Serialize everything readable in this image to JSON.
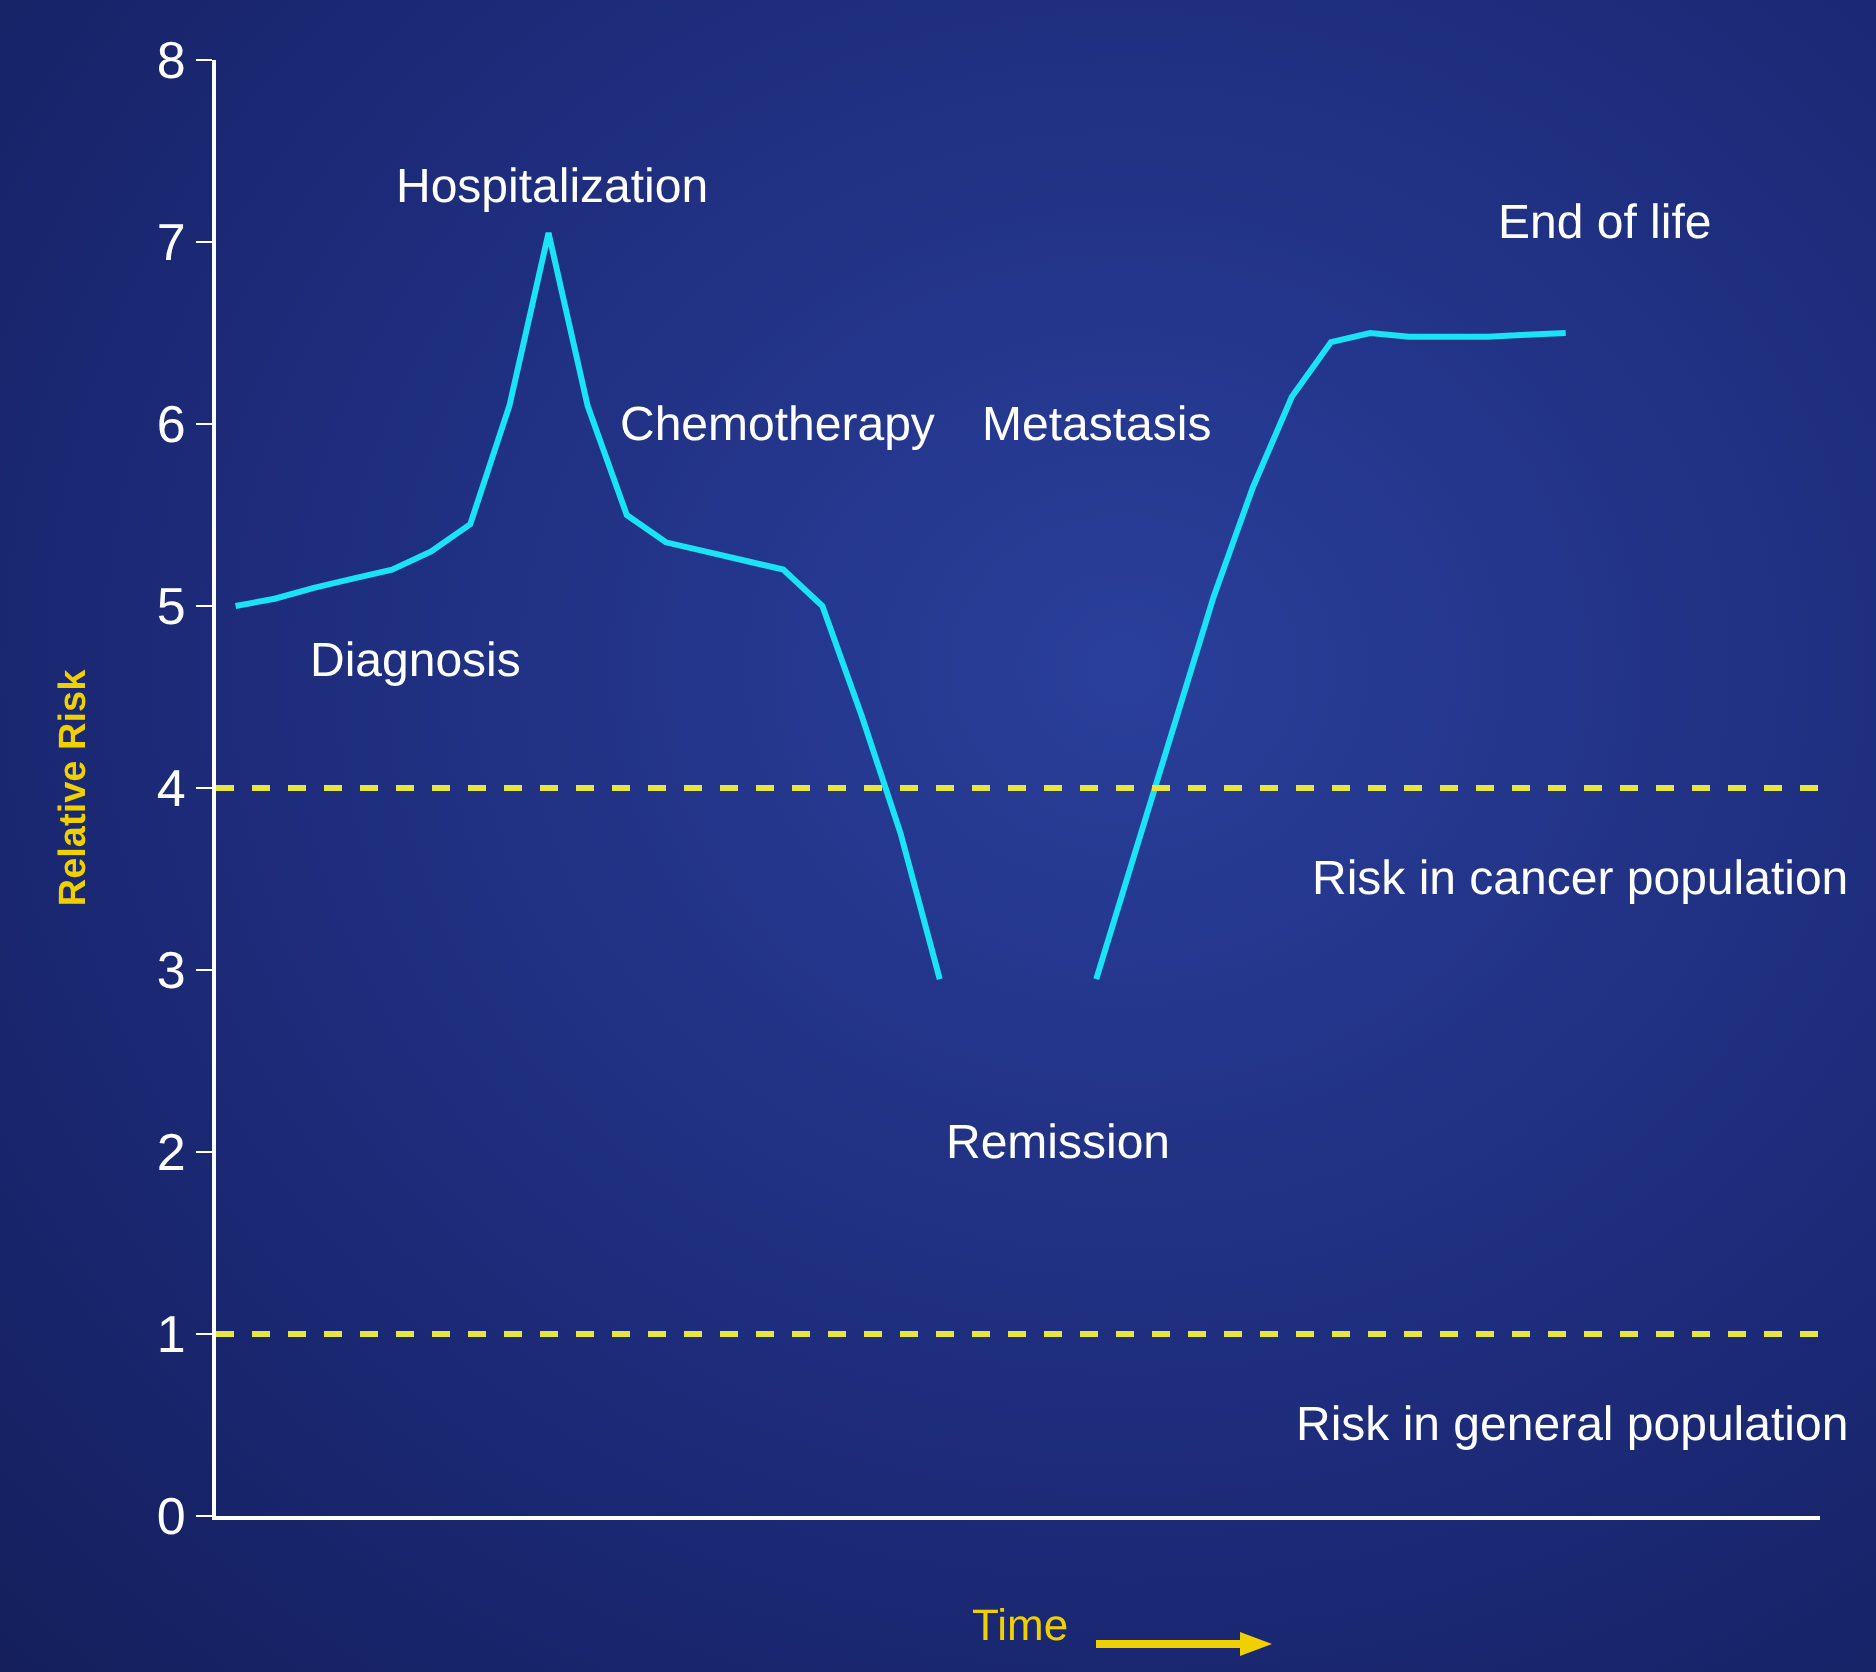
{
  "chart_data": {
    "type": "line",
    "xlabel": "Time",
    "ylabel": "Relative Risk",
    "categories": [
      null,
      null,
      null,
      null,
      null,
      null,
      null,
      null,
      null,
      null,
      null,
      null,
      null,
      null,
      null,
      null,
      null,
      null,
      null,
      null,
      null,
      null,
      null,
      null,
      null,
      null,
      null,
      null,
      null,
      null,
      null,
      null,
      null,
      null,
      null,
      null,
      null,
      null,
      null,
      null,
      null
    ],
    "series": [
      {
        "color": "#19e3f5",
        "values": [
          5.0,
          5.04,
          5.1,
          5.15,
          5.2,
          5.3,
          5.45,
          6.1,
          7.05,
          6.1,
          5.5,
          5.35,
          5.3,
          5.25,
          5.2,
          5.0,
          4.4,
          3.75,
          2.95,
          null,
          null,
          null,
          2.95,
          3.65,
          4.35,
          5.05,
          5.65,
          6.15,
          6.45,
          6.5,
          6.48,
          6.48,
          6.48,
          6.49,
          6.5,
          null,
          null,
          null,
          null,
          null,
          null
        ]
      }
    ],
    "ylim": [
      0,
      8
    ],
    "yticks": [
      0,
      1,
      2,
      3,
      4,
      5,
      6,
      7,
      8
    ],
    "tick_labels": "y",
    "grid": false,
    "marker": "none",
    "line_style": "solid",
    "ref_lines": [
      {
        "axis": "y",
        "value": 4,
        "label": "Risk in cancer population",
        "color": "#e6e63c",
        "line_style": "dashed"
      },
      {
        "axis": "y",
        "value": 1,
        "label": "Risk in general population",
        "color": "#e6e63c",
        "line_style": "dashed"
      }
    ],
    "annotations": [
      "Diagnosis",
      "Hospitalization",
      "Chemotherapy",
      "Metastasis",
      "Remission",
      "End of life"
    ]
  }
}
